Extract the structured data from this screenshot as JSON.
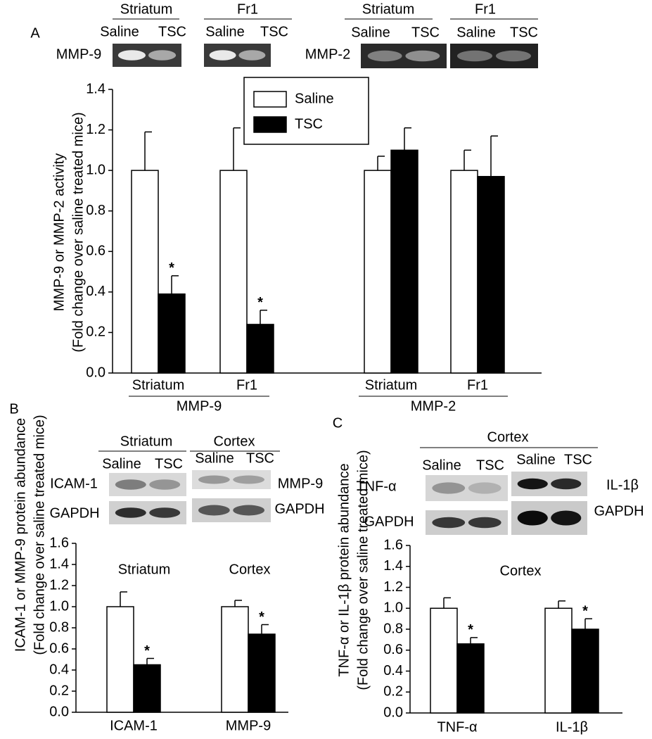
{
  "chart_data": [
    {
      "type": "bar",
      "panel_label": "A",
      "blot_labels": [
        "Striatum",
        "Fr1",
        "Striatum",
        "Fr1",
        "Saline",
        "TSC",
        "Saline",
        "TSC",
        "Saline",
        "TSC",
        "Saline",
        "TSC",
        "MMP-9",
        "MMP-2"
      ],
      "y_label": [
        "MMP-9 or MMP-2 activity",
        "(Fold change over saline treated mice)"
      ],
      "categories": [
        "Striatum",
        "Fr1",
        "Striatum",
        "Fr1"
      ],
      "group_labels": [
        "MMP-9",
        "MMP-2"
      ],
      "legend": "upper center",
      "series": [
        {
          "name": "Saline",
          "color": "#ffffff",
          "values": [
            1.0,
            1.0,
            1.0,
            1.0
          ],
          "errors": [
            0.19,
            0.21,
            0.07,
            0.1
          ]
        },
        {
          "name": "TSC",
          "color": "#000000",
          "values": [
            0.39,
            0.24,
            1.1,
            0.97
          ],
          "errors": [
            0.09,
            0.07,
            0.11,
            0.2
          ],
          "significance": [
            "*",
            "*",
            null,
            null
          ]
        }
      ],
      "ylim": [
        0,
        1.4
      ],
      "yticks": [
        {
          "value": 0,
          "label": "0.0"
        },
        0.2,
        0.4,
        0.6,
        0.8,
        {
          "value": 1,
          "label": "1.0"
        },
        1.2,
        1.4
      ]
    },
    {
      "type": "bar",
      "panel_label": "B",
      "blot_labels": [
        "Striatum",
        "Cortex",
        "Saline",
        "TSC",
        "Saline",
        "TSC",
        "ICAM-1",
        "MMP-9",
        "GAPDH",
        "GAPDH"
      ],
      "y_label": [
        "ICAM-1 or MMP-9 protein abundance",
        "(Fold change over saline treated mice)"
      ],
      "subtitles": [
        "Striatum",
        "Cortex"
      ],
      "categories": [
        "ICAM-1",
        "MMP-9"
      ],
      "series": [
        {
          "color": "#ffffff",
          "values": [
            1.0,
            1.0
          ],
          "errors": [
            0.14,
            0.06
          ]
        },
        {
          "color": "#000000",
          "values": [
            0.45,
            0.74
          ],
          "errors": [
            0.06,
            0.09
          ],
          "significance": [
            "*",
            "*"
          ]
        }
      ],
      "ylim": [
        0,
        1.6
      ],
      "yticks": [
        {
          "value": 0,
          "label": "0.0"
        },
        0.2,
        0.4,
        0.6,
        0.8,
        {
          "value": 1,
          "label": "1.0"
        },
        1.2,
        1.4,
        1.6
      ]
    },
    {
      "type": "bar",
      "panel_label": "C",
      "blot_labels": [
        "Cortex",
        "Saline",
        "TSC",
        "Saline",
        "TSC",
        "TNF-α",
        "IL-1β",
        "GAPDH",
        "GAPDH"
      ],
      "y_label": [
        "TNF-α or IL-1β protein abundance",
        "(Fold change over saline treated mice)"
      ],
      "subtitles": [
        "Cortex"
      ],
      "categories": [
        "TNF-α",
        "IL-1β"
      ],
      "series": [
        {
          "color": "#ffffff",
          "values": [
            1.0,
            1.0
          ],
          "errors": [
            0.1,
            0.07
          ]
        },
        {
          "color": "#000000",
          "values": [
            0.66,
            0.8
          ],
          "errors": [
            0.06,
            0.1
          ],
          "significance": [
            "*",
            "*"
          ]
        }
      ],
      "ylim": [
        0,
        1.6
      ],
      "yticks": [
        {
          "value": 0,
          "label": "0.0"
        },
        0.2,
        0.4,
        0.6,
        0.8,
        {
          "value": 1,
          "label": "1.0"
        },
        1.2,
        1.4,
        1.6
      ]
    }
  ]
}
